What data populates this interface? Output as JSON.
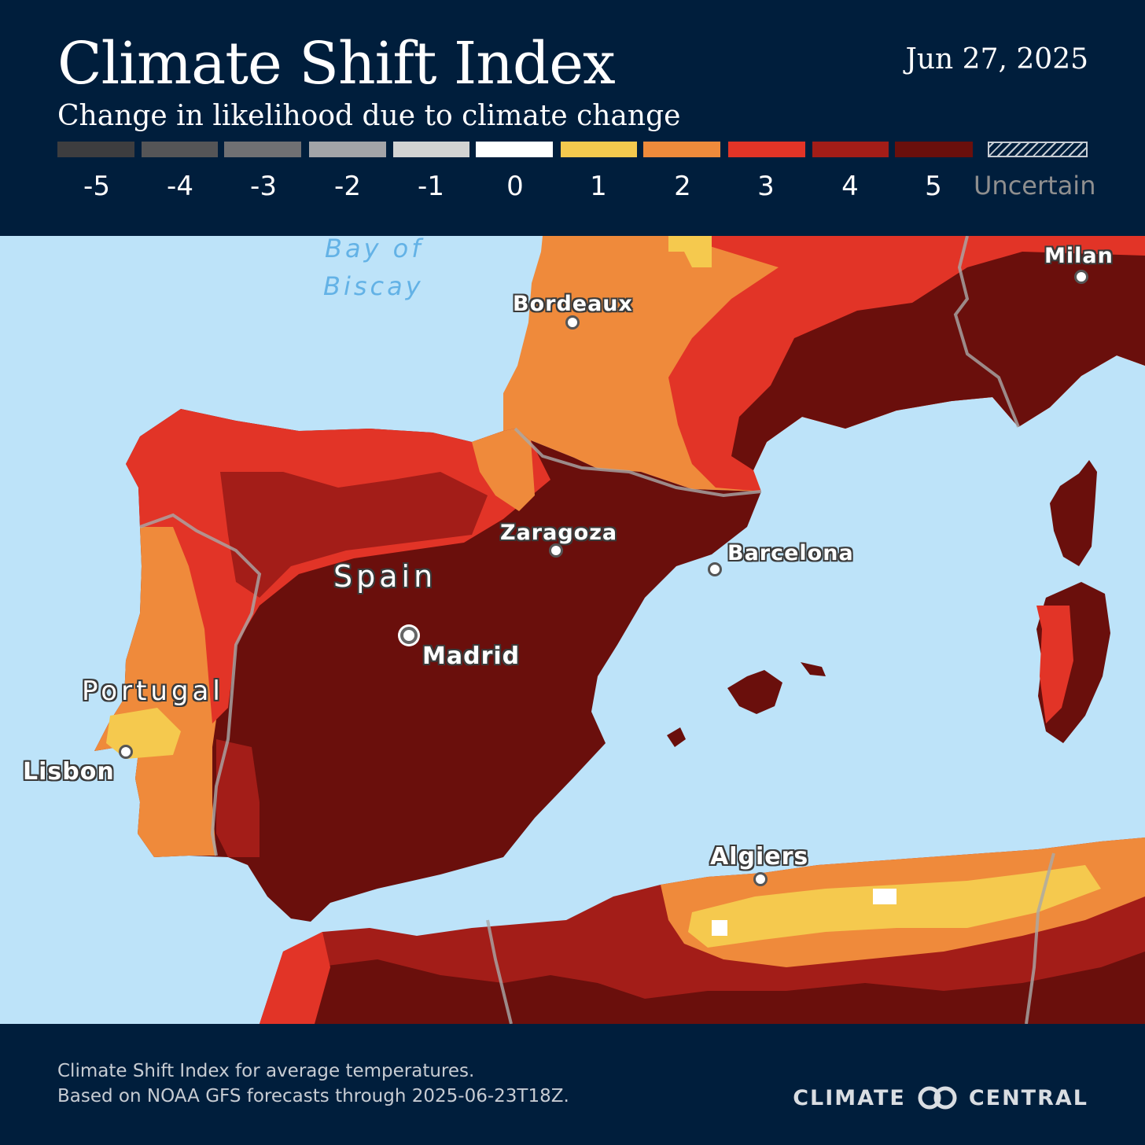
{
  "header": {
    "title": "Climate Shift Index",
    "subtitle": "Change in likelihood due to climate change",
    "date": "Jun 27, 2025"
  },
  "legend": {
    "items": [
      {
        "label": "-5",
        "color": "#3d3d3f"
      },
      {
        "label": "-4",
        "color": "#555557"
      },
      {
        "label": "-3",
        "color": "#707073"
      },
      {
        "label": "-2",
        "color": "#a3a4a8"
      },
      {
        "label": "-1",
        "color": "#d3d3d3"
      },
      {
        "label": "0",
        "color": "#ffffff"
      },
      {
        "label": "1",
        "color": "#f5c94e"
      },
      {
        "label": "2",
        "color": "#ef8a3b"
      },
      {
        "label": "3",
        "color": "#e23427"
      },
      {
        "label": "4",
        "color": "#a31d18"
      },
      {
        "label": "5",
        "color": "#6a0f0c"
      }
    ],
    "uncertain_label": "Uncertain"
  },
  "map": {
    "water_labels": {
      "bay_line1": "Bay of",
      "bay_line2": "Biscay"
    },
    "cities": {
      "milan": "Milan",
      "bordeaux": "Bordeaux",
      "zaragoza": "Zaragoza",
      "barcelona": "Barcelona",
      "madrid": "Madrid",
      "lisbon": "Lisbon",
      "algiers": "Algiers"
    },
    "countries": {
      "spain": "Spain",
      "portugal": "Portugal"
    }
  },
  "footer": {
    "line1": "Climate Shift Index for average temperatures.",
    "line2": "Based on NOAA GFS forecasts through 2025-06-23T18Z.",
    "brand_left": "CLIMATE",
    "brand_right": "CENTRAL"
  }
}
